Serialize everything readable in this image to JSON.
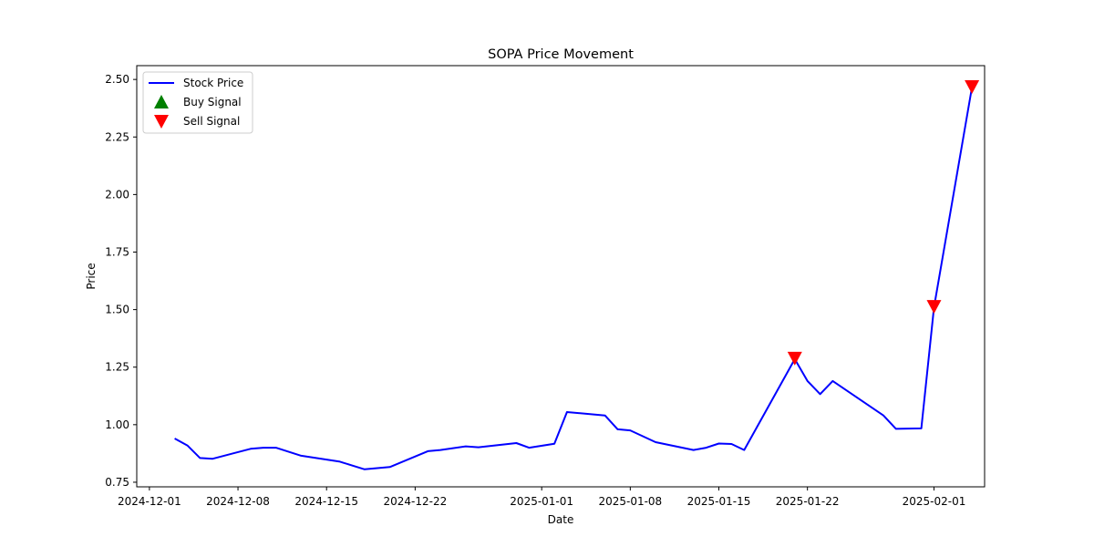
{
  "chart_data": {
    "type": "line",
    "title": "SOPA Price Movement",
    "xlabel": "Date",
    "ylabel": "Price",
    "xlim": [
      "2024-11-30",
      "2025-02-05"
    ],
    "ylim": [
      0.73,
      2.56
    ],
    "x_ticks": [
      "2024-12-01",
      "2024-12-08",
      "2024-12-15",
      "2024-12-22",
      "2025-01-01",
      "2025-01-08",
      "2025-01-15",
      "2025-01-22",
      "2025-02-01"
    ],
    "y_ticks": [
      "0.75",
      "1.00",
      "1.25",
      "1.50",
      "1.75",
      "2.00",
      "2.25",
      "2.50"
    ],
    "grid": false,
    "legend_position": "top-left",
    "series": [
      {
        "name": "Stock Price",
        "color": "#0000ff",
        "points": [
          [
            "2024-12-03",
            0.94
          ],
          [
            "2024-12-04",
            0.91
          ],
          [
            "2024-12-05",
            0.855
          ],
          [
            "2024-12-06",
            0.852
          ],
          [
            "2024-12-09",
            0.895
          ],
          [
            "2024-12-10",
            0.9
          ],
          [
            "2024-12-11",
            0.9
          ],
          [
            "2024-12-13",
            0.865
          ],
          [
            "2024-12-16",
            0.84
          ],
          [
            "2024-12-18",
            0.806
          ],
          [
            "2024-12-20",
            0.816
          ],
          [
            "2024-12-23",
            0.885
          ],
          [
            "2024-12-24",
            0.89
          ],
          [
            "2024-12-26",
            0.906
          ],
          [
            "2024-12-27",
            0.902
          ],
          [
            "2024-12-30",
            0.92
          ],
          [
            "2024-12-31",
            0.9
          ],
          [
            "2025-01-02",
            0.917
          ],
          [
            "2025-01-03",
            1.055
          ],
          [
            "2025-01-06",
            1.04
          ],
          [
            "2025-01-07",
            0.98
          ],
          [
            "2025-01-08",
            0.975
          ],
          [
            "2025-01-10",
            0.924
          ],
          [
            "2025-01-13",
            0.89
          ],
          [
            "2025-01-14",
            0.9
          ],
          [
            "2025-01-15",
            0.918
          ],
          [
            "2025-01-16",
            0.916
          ],
          [
            "2025-01-17",
            0.89
          ],
          [
            "2025-01-21",
            1.285
          ],
          [
            "2025-01-22",
            1.19
          ],
          [
            "2025-01-23",
            1.133
          ],
          [
            "2025-01-24",
            1.19
          ],
          [
            "2025-01-28",
            1.04
          ],
          [
            "2025-01-29",
            0.982
          ],
          [
            "2025-01-31",
            0.984
          ],
          [
            "2025-02-01",
            1.51
          ],
          [
            "2025-02-04",
            2.465
          ]
        ]
      }
    ],
    "buy_signals": {
      "name": "Buy Signal",
      "color": "#008000",
      "marker": "triangle-up",
      "points": []
    },
    "sell_signals": {
      "name": "Sell Signal",
      "color": "#ff0000",
      "marker": "triangle-down",
      "points": [
        [
          "2025-01-21",
          1.285
        ],
        [
          "2025-02-01",
          1.51
        ],
        [
          "2025-02-04",
          2.465
        ]
      ]
    }
  }
}
